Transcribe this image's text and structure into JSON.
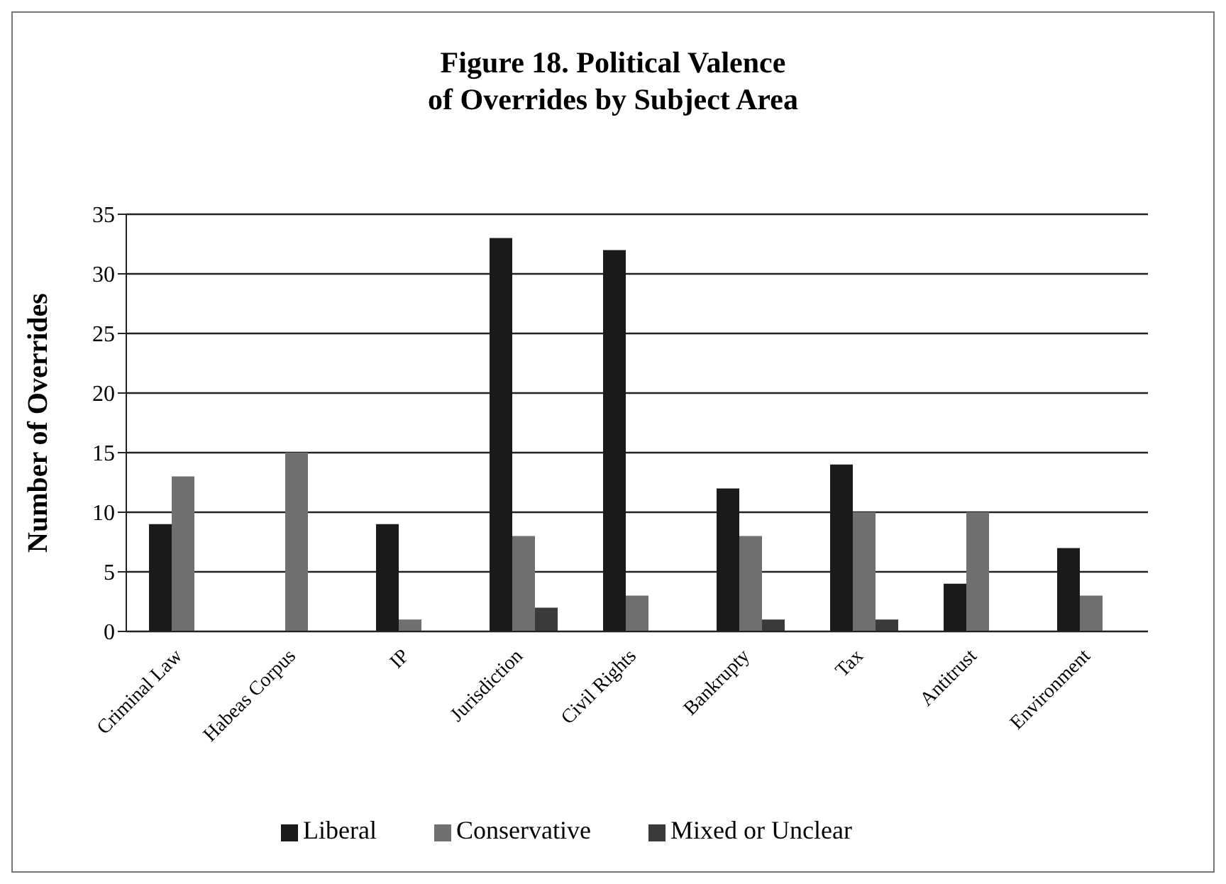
{
  "chart_data": {
    "type": "bar",
    "title": "Figure 18. Political Valence\nof Overrides by Subject Area",
    "ylabel": "Number of Overrides",
    "categories": [
      "Criminal Law",
      "Habeas Corpus",
      "IP",
      "Jurisdiction",
      "Civil Rights",
      "Bankrupty",
      "Tax",
      "Antitrust",
      "Environment"
    ],
    "series": [
      {
        "name": "Liberal",
        "color": "#1a1a1a",
        "values": [
          9,
          0,
          9,
          33,
          32,
          12,
          14,
          4,
          7
        ]
      },
      {
        "name": "Conservative",
        "color": "#707070",
        "values": [
          13,
          15,
          1,
          8,
          3,
          8,
          10,
          10,
          3
        ]
      },
      {
        "name": "Mixed or Unclear",
        "color": "#3a3a3a",
        "values": [
          0,
          0,
          0,
          2,
          0,
          1,
          1,
          0,
          0
        ]
      }
    ],
    "ylim": [
      0,
      35
    ],
    "yticks": [
      0,
      5,
      10,
      15,
      20,
      25,
      30,
      35
    ],
    "grid": "y",
    "legend": "bottom"
  }
}
